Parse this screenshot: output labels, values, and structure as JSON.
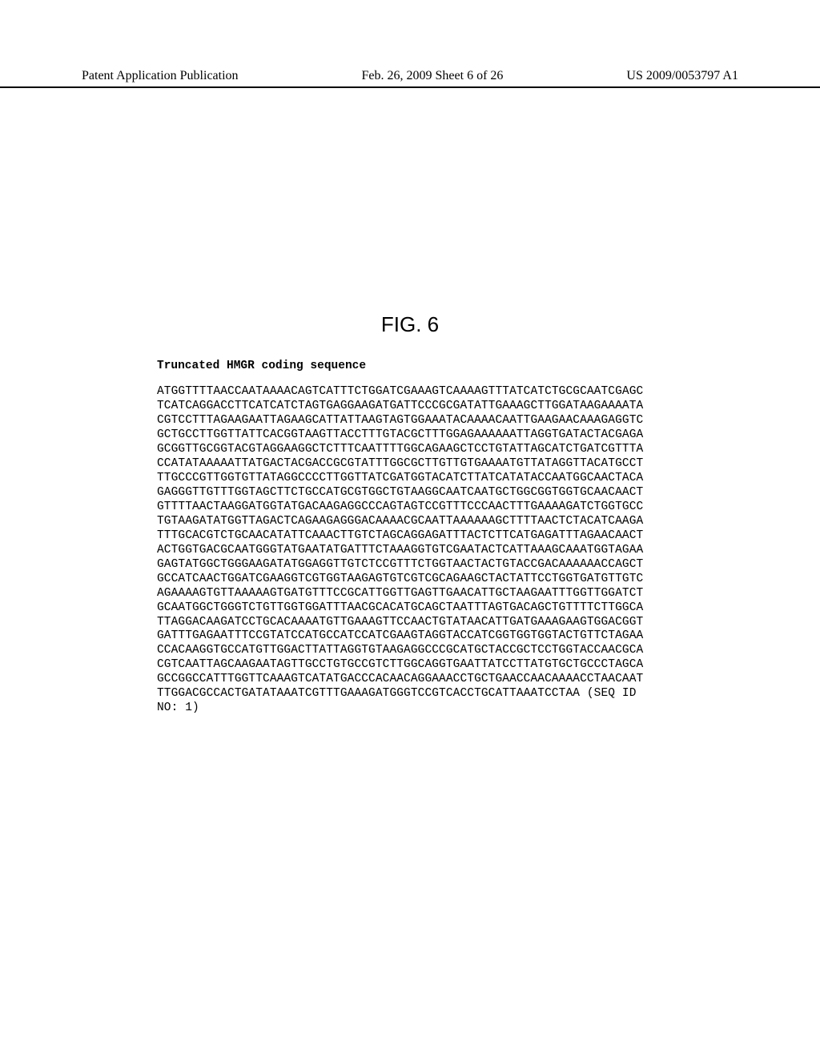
{
  "header": {
    "left": "Patent Application Publication",
    "center": "Feb. 26, 2009  Sheet 6 of 26",
    "right": "US 2009/0053797 A1"
  },
  "figure": {
    "label": "FIG. 6",
    "title": "Truncated HMGR coding sequence",
    "sequence_lines": [
      "ATGGTTTTAACCAATAAAACAGTCATTTCTGGATCGAAAGTCAAAAGTTTATCATCTGCGCAATCGAGC",
      "TCATCAGGACCTTCATCATCTAGTGAGGAAGATGATTCCCGCGATATTGAAAGCTTGGATAAGAAAATA",
      "CGTCCTTTAGAAGAATTAGAAGCATTATTAAGTAGTGGAAATACAAAACAATTGAAGAACAAAGAGGTC",
      "GCTGCCTTGGTTATTCACGGTAAGTTACCTTTGTACGCTTTGGAGAAAAAATTAGGTGATACTACGAGA",
      "GCGGTTGCGGTACGTAGGAAGGCTCTTTCAATTTTGGCAGAAGCTCCTGTATTAGCATCTGATCGTTTA",
      "CCATATAAAAATTATGACTACGACCGCGTATTTGGCGCTTGTTGTGAAAATGTTATAGGTTACATGCCT",
      "TTGCCCGTTGGTGTTATAGGCCCCTTGGTTATCGATGGTACATCTTATCATATACCAATGGCAACTACA",
      "GAGGGTTGTTTGGTAGCTTCTGCCATGCGTGGCTGTAAGGCAATCAATGCTGGCGGTGGTGCAACAACT",
      "GTTTTAACTAAGGATGGTATGACAAGAGGCCCAGTAGTCCGTTTCCCAACTTTGAAAAGATCTGGTGCC",
      "TGTAAGATATGGTTAGACTCAGAAGAGGGACAAAACGCAATTAAAAAAGCTTTTAACTCTACATCAAGA",
      "TTTGCACGTCTGCAACATATTCAAACTTGTCTAGCAGGAGATTTACTCTTCATGAGATTTAGAACAACT",
      "ACTGGTGACGCAATGGGTATGAATATGATTTCTAAAGGTGTCGAATACTCATTAAAGCAAATGGTAGAA",
      "GAGTATGGCTGGGAAGATATGGAGGTTGTCTCCGTTTCTGGTAACTACTGTACCGACAAAAAACCAGCT",
      "GCCATCAACTGGATCGAAGGTCGTGGTAAGAGTGTCGTCGCAGAAGCTACTATTCCTGGTGATGTTGTC",
      "AGAAAAGTGTTAAAAAGTGATGTTTCCGCATTGGTTGAGTTGAACATTGCTAAGAATTTGGTTGGATCT",
      "GCAATGGCTGGGTCTGTTGGTGGATTTAACGCACATGCAGCTAATTTAGTGACAGCTGTTTTCTTGGCA",
      "TTAGGACAAGATCCTGCACAAAATGTTGAAAGTTCCAACTGTATAACATTGATGAAAGAAGTGGACGGT",
      "GATTTGAGAATTTCCGTATCCATGCCATCCATCGAAGTAGGTACCATCGGTGGTGGTACTGTTCTAGAA",
      "CCACAAGGTGCCATGTTGGACTTATTAGGTGTAAGAGGCCCGCATGCTACCGCTCCTGGTACCAACGCA",
      "CGTCAATTAGCAAGAATAGTTGCCTGTGCCGTCTTGGCAGGTGAATTATCCTTATGTGCTGCCCTAGCA",
      "GCCGGCCATTTGGTTCAAAGTCATATGACCCACAACAGGAAACCTGCTGAACCAACAAAACCTAACAAT",
      "TTGGACGCCACTGATATAAATCGTTTGAAAGATGGGTCCGTCACCTGCATTAAATCCTAA (SEQ ID",
      "NO: 1)"
    ]
  },
  "colors": {
    "background": "#ffffff",
    "text": "#000000",
    "border": "#000000"
  }
}
